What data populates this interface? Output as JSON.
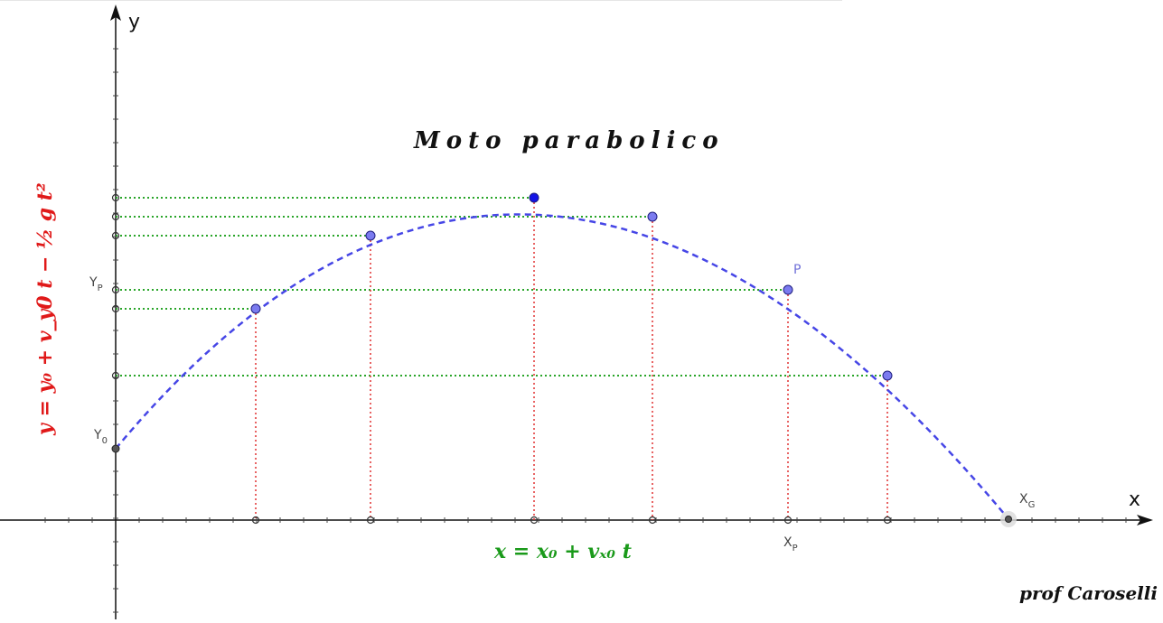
{
  "title": "Moto parabolico",
  "axes": {
    "x_label": "x",
    "y_label": "y"
  },
  "point_labels": {
    "y0": "Y",
    "y0_sub": "0",
    "yp": "Y",
    "yp_sub": "P",
    "xp": "X",
    "xp_sub": "P",
    "xg": "X",
    "xg_sub": "G",
    "p": "P"
  },
  "equations": {
    "x_eq": "x = x₀ + vₓ₀ t",
    "y_eq": "y = y₀ + v_y0 t − ½ g t²"
  },
  "signature": "prof Caroselli",
  "colors": {
    "curve": "#4646e6",
    "points_fill": "#7b7bef",
    "apex_fill": "#1414e6",
    "horizontal_guides": "#2aa52a",
    "vertical_guides": "#e03030",
    "axes": "#111111"
  }
}
